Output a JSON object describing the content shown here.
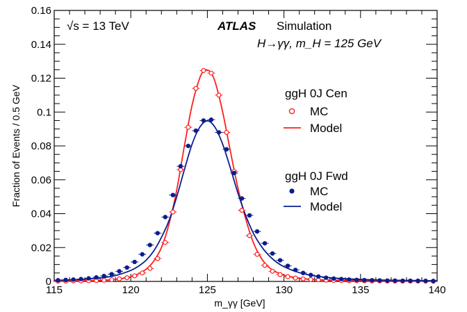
{
  "annotations": {
    "energy": "√s = 13 TeV",
    "experiment": "ATLAS",
    "label": "Simulation",
    "process": "H→γγ, m_H = 125 GeV"
  },
  "chart_data": {
    "type": "scatter",
    "title": "",
    "xlabel": "m_γγ [GeV]",
    "ylabel": "Fraction of Events / 0.5 GeV",
    "xlim": [
      115,
      140
    ],
    "ylim": [
      0,
      0.16
    ],
    "x_ticks": [
      115,
      120,
      125,
      130,
      135,
      140
    ],
    "x_tick_labels": [
      "115",
      "120",
      "125",
      "130",
      "135",
      "140"
    ],
    "y_ticks": [
      0,
      0.02,
      0.04,
      0.06,
      0.08,
      0.1,
      0.12,
      0.14,
      0.16
    ],
    "y_tick_labels": [
      "0",
      "0.02",
      "0.04",
      "0.06",
      "0.08",
      "0.1",
      "0.12",
      "0.14",
      "0.16"
    ],
    "grid": false,
    "legend_position": "right",
    "legend_groups": [
      {
        "title": "ggH 0J Cen",
        "entries": [
          "MC",
          "Model"
        ]
      },
      {
        "title": "ggH 0J Fwd",
        "entries": [
          "MC",
          "Model"
        ]
      }
    ],
    "colors": {
      "cen": "#ff1e1e",
      "fwd": "#0a1e8c"
    },
    "series": [
      {
        "category": "ggH 0J Cen",
        "kind": "MC",
        "marker": "open-circle",
        "x": [
          115.25,
          115.75,
          116.25,
          116.75,
          117.25,
          117.75,
          118.25,
          118.75,
          119.25,
          119.75,
          120.25,
          120.75,
          121.25,
          121.75,
          122.25,
          122.75,
          123.25,
          123.75,
          124.25,
          124.75,
          125.25,
          125.75,
          126.25,
          126.75,
          127.25,
          127.75,
          128.25,
          128.75,
          129.25,
          129.75,
          130.25,
          130.75,
          131.25,
          131.75,
          132.25,
          132.75,
          133.25,
          133.75,
          134.25,
          134.75,
          135.25,
          135.75,
          136.25,
          136.75,
          137.25,
          137.75,
          138.25,
          138.75,
          139.25,
          139.75
        ],
        "y": [
          0.0002,
          0.0002,
          0.0003,
          0.0003,
          0.0004,
          0.0005,
          0.0007,
          0.001,
          0.0015,
          0.0022,
          0.0033,
          0.005,
          0.0077,
          0.0135,
          0.023,
          0.041,
          0.066,
          0.091,
          0.114,
          0.1245,
          0.123,
          0.11,
          0.088,
          0.065,
          0.042,
          0.027,
          0.016,
          0.0095,
          0.006,
          0.004,
          0.0028,
          0.002,
          0.0015,
          0.0011,
          0.0009,
          0.0007,
          0.0006,
          0.0005,
          0.0004,
          0.0004,
          0.0003,
          0.0003,
          0.0003,
          0.0002,
          0.0002,
          0.0002,
          0.0002,
          0.0002,
          0.0002,
          0.0001
        ]
      },
      {
        "category": "ggH 0J Cen",
        "kind": "Model",
        "line": "solid",
        "x": [
          115,
          116,
          117,
          118,
          119,
          119.5,
          120,
          120.5,
          121,
          121.5,
          122,
          122.5,
          123,
          123.5,
          124,
          124.5,
          124.8,
          125,
          125.2,
          125.5,
          126,
          126.5,
          127,
          127.5,
          128,
          128.5,
          129,
          129.5,
          130,
          131,
          132,
          133,
          134,
          135,
          136,
          137,
          138,
          139,
          140
        ],
        "y": [
          0.0002,
          0.0003,
          0.0004,
          0.0006,
          0.0012,
          0.0018,
          0.0028,
          0.0045,
          0.0072,
          0.012,
          0.02,
          0.034,
          0.054,
          0.08,
          0.104,
          0.12,
          0.1245,
          0.1248,
          0.1235,
          0.118,
          0.1,
          0.077,
          0.055,
          0.037,
          0.023,
          0.014,
          0.0085,
          0.0055,
          0.0037,
          0.0019,
          0.0011,
          0.0007,
          0.0005,
          0.0004,
          0.0003,
          0.0003,
          0.0002,
          0.0002,
          0.0002
        ]
      },
      {
        "category": "ggH 0J Fwd",
        "kind": "MC",
        "marker": "filled-circle",
        "x": [
          115.25,
          115.75,
          116.25,
          116.75,
          117.25,
          117.75,
          118.25,
          118.75,
          119.25,
          119.75,
          120.25,
          120.75,
          121.25,
          121.75,
          122.25,
          122.75,
          123.25,
          123.75,
          124.25,
          124.75,
          125.25,
          125.75,
          126.25,
          126.75,
          127.25,
          127.75,
          128.25,
          128.75,
          129.25,
          129.75,
          130.25,
          130.75,
          131.25,
          131.75,
          132.25,
          132.75,
          133.25,
          133.75,
          134.25,
          134.75,
          135.25,
          135.75,
          136.25,
          136.75,
          137.25,
          137.75,
          138.25,
          138.75,
          139.25,
          139.75
        ],
        "y": [
          0.0007,
          0.0009,
          0.0011,
          0.0014,
          0.0018,
          0.0024,
          0.0032,
          0.0043,
          0.006,
          0.0082,
          0.0115,
          0.016,
          0.0215,
          0.0285,
          0.038,
          0.051,
          0.068,
          0.08,
          0.089,
          0.095,
          0.0955,
          0.088,
          0.078,
          0.064,
          0.049,
          0.039,
          0.0295,
          0.0225,
          0.0165,
          0.0125,
          0.0092,
          0.0068,
          0.005,
          0.0038,
          0.0029,
          0.0022,
          0.0017,
          0.0014,
          0.0011,
          0.0009,
          0.0008,
          0.0007,
          0.0006,
          0.0005,
          0.0005,
          0.0004,
          0.0004,
          0.0004,
          0.0003,
          0.0003
        ]
      },
      {
        "category": "ggH 0J Fwd",
        "kind": "Model",
        "line": "solid",
        "x": [
          115,
          116,
          117,
          118,
          119,
          120,
          120.5,
          121,
          121.5,
          122,
          122.5,
          123,
          123.5,
          124,
          124.5,
          125,
          125.5,
          126,
          126.5,
          127,
          127.5,
          128,
          128.5,
          129,
          129.5,
          130,
          131,
          132,
          133,
          134,
          135,
          136,
          137,
          138,
          139,
          140
        ],
        "y": [
          0.0006,
          0.0009,
          0.0013,
          0.002,
          0.0035,
          0.0065,
          0.009,
          0.0125,
          0.018,
          0.026,
          0.036,
          0.05,
          0.066,
          0.081,
          0.091,
          0.0948,
          0.091,
          0.081,
          0.067,
          0.052,
          0.039,
          0.0285,
          0.021,
          0.0155,
          0.0115,
          0.0087,
          0.0052,
          0.0033,
          0.0022,
          0.0016,
          0.0012,
          0.0009,
          0.0007,
          0.0006,
          0.0005,
          0.0004
        ]
      }
    ]
  }
}
